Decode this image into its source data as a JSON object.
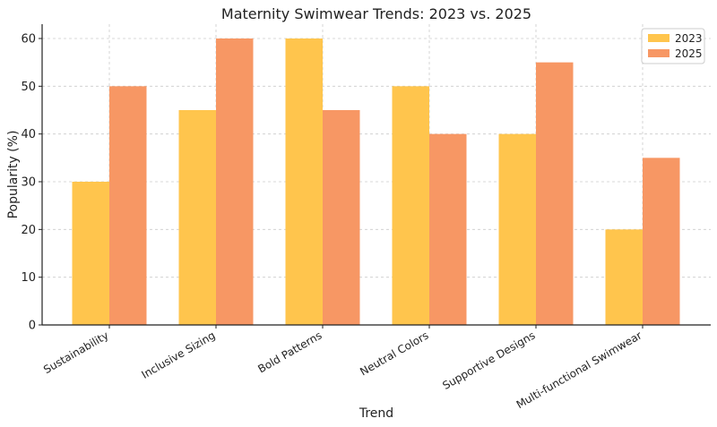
{
  "chart_data": {
    "type": "bar",
    "title": "Maternity Swimwear Trends: 2023 vs. 2025",
    "xlabel": "Trend",
    "ylabel": "Popularity (%)",
    "categories": [
      "Sustainability",
      "Inclusive Sizing",
      "Bold Patterns",
      "Neutral Colors",
      "Supportive Designs",
      "Multi-functional Swimwear"
    ],
    "series": [
      {
        "name": "2023",
        "values": [
          30,
          45,
          60,
          50,
          40,
          20
        ],
        "color": "#FFC54D"
      },
      {
        "name": "2025",
        "values": [
          50,
          60,
          45,
          40,
          55,
          35
        ],
        "color": "#F79764"
      }
    ],
    "ylim": [
      0,
      63
    ],
    "yticks": [
      0,
      10,
      20,
      30,
      40,
      50,
      60
    ],
    "grid": true,
    "legend": "top-right"
  }
}
